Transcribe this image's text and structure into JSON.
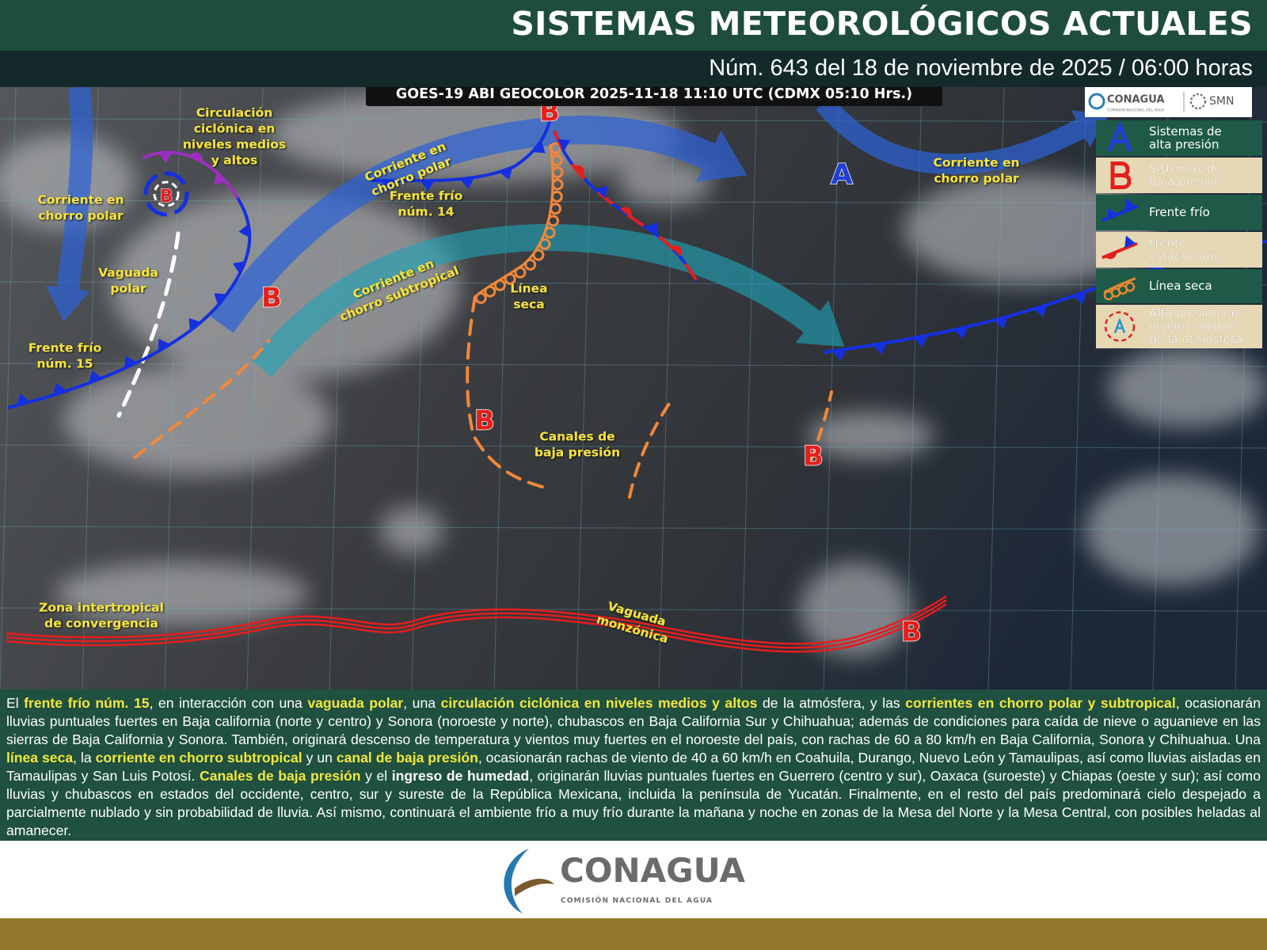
{
  "header": {
    "title": "SISTEMAS METEOROLÓGICOS ACTUALES",
    "subtitle": "Núm. 643 del 18 de noviembre de 2025 / 06:00 horas"
  },
  "map": {
    "satellite_label": "GOES-19 ABI GEOCOLOR 2025-11-18 11:10 UTC (CDMX  05:10 Hrs.)",
    "logo": {
      "agency": "CONAGUA",
      "agency_sub": "COMISIÓN NACIONAL DEL AGUA",
      "service": "SMN"
    },
    "labels": [
      {
        "lines": [
          "Circulación",
          "ciclónica en",
          "niveles medios",
          "y altos"
        ]
      },
      {
        "lines": [
          "Corriente en",
          "chorro polar"
        ]
      },
      {
        "lines": [
          "Vaguada",
          "polar"
        ]
      },
      {
        "lines": [
          "Frente frío",
          "núm. 15"
        ]
      },
      {
        "lines": [
          "Corriente en",
          "chorro polar"
        ]
      },
      {
        "lines": [
          "Frente frío",
          "núm. 14"
        ]
      },
      {
        "lines": [
          "Corriente en",
          "chorro subtropical"
        ]
      },
      {
        "lines": [
          "Línea",
          "seca"
        ]
      },
      {
        "lines": [
          "Canales de",
          "baja presión"
        ]
      },
      {
        "lines": [
          "Corriente en",
          "chorro polar"
        ]
      },
      {
        "lines": [
          "Zona intertropical",
          "de convergencia"
        ]
      },
      {
        "lines": [
          "Vaguada",
          "monzónica"
        ]
      }
    ],
    "pressure_centers": [
      {
        "letter": "B",
        "color": "#e3201b"
      },
      {
        "letter": "B",
        "color": "#e3201b"
      },
      {
        "letter": "B",
        "color": "#e3201b"
      },
      {
        "letter": "B",
        "color": "#e3201b"
      },
      {
        "letter": "B",
        "color": "#e3201b"
      },
      {
        "letter": "B",
        "color": "#e3201b"
      },
      {
        "letter": "A",
        "color": "#1f3fd6"
      }
    ],
    "legend": [
      {
        "lines": [
          "Sistemas de",
          "alta presión"
        ]
      },
      {
        "lines": [
          "Sistemas de",
          "baja presión"
        ]
      },
      {
        "lines": [
          "Frente frío"
        ]
      },
      {
        "lines": [
          "Frente",
          "estacionario"
        ]
      },
      {
        "lines": [
          "Línea seca"
        ]
      },
      {
        "lines": [
          "Alta presión en",
          "niveles medios",
          "de la atmósfera"
        ]
      }
    ]
  },
  "description": {
    "segments": [
      {
        "text": "El ",
        "bold": false
      },
      {
        "text": "frente frío núm. 15",
        "bold": true,
        "color": "#f3e83a"
      },
      {
        "text": ", en interacción con una ",
        "bold": false
      },
      {
        "text": "vaguada polar",
        "bold": true,
        "color": "#f3e83a"
      },
      {
        "text": ", una ",
        "bold": false
      },
      {
        "text": "circulación ciclónica en niveles medios y altos",
        "bold": true,
        "color": "#f3e83a"
      },
      {
        "text": " de la atmósfera, y las ",
        "bold": false
      },
      {
        "text": "corrientes en chorro polar y subtropical",
        "bold": true,
        "color": "#f3e83a"
      },
      {
        "text": ", ocasionarán lluvias puntuales fuertes en Baja california (norte y centro) y Sonora (noroeste y norte), chubascos en Baja California Sur y Chihuahua; además de condiciones para caída de nieve o aguanieve en las sierras de Baja California y Sonora. También, originará descenso de temperatura y vientos muy fuertes en el noroeste del país, con rachas de 60 a 80 km/h en Baja California, Sonora y Chihuahua. Una ",
        "bold": false
      },
      {
        "text": "línea seca",
        "bold": true,
        "color": "#f3e83a"
      },
      {
        "text": ", la ",
        "bold": false
      },
      {
        "text": "corriente en chorro subtropical",
        "bold": true,
        "color": "#f3e83a"
      },
      {
        "text": " y un ",
        "bold": false
      },
      {
        "text": "canal de baja presión",
        "bold": true,
        "color": "#f3e83a"
      },
      {
        "text": ", ocasionarán rachas de viento de 40 a 60 km/h en Coahuila, Durango, Nuevo León y Tamaulipas, así como lluvias aisladas en Tamaulipas y San Luis Potosí. ",
        "bold": false
      },
      {
        "text": "Canales de baja presión",
        "bold": true,
        "color": "#f3e83a"
      },
      {
        "text": " y el ",
        "bold": false
      },
      {
        "text": "ingreso de humedad",
        "bold": true,
        "color": "#ffffff"
      },
      {
        "text": ", originarán lluvias puntuales fuertes en Guerrero (centro y sur), Oaxaca (suroeste) y Chiapas (oeste y sur); así como lluvias y chubascos en estados del occidente, centro, sur y sureste de la República Mexicana, incluida la península de Yucatán. Finalmente, en el resto del país predominará cielo despejado a parcialmente nublado y sin probabilidad de lluvia. Así mismo, continuará el ambiente frío a muy frío durante la mañana y noche en zonas de la Mesa del Norte y la Mesa Central, con posibles heladas al amanecer.",
        "bold": false
      }
    ]
  },
  "footer": {
    "agency": "CONAGUA",
    "agency_sub": "COMISIÓN NACIONAL DEL AGUA"
  }
}
